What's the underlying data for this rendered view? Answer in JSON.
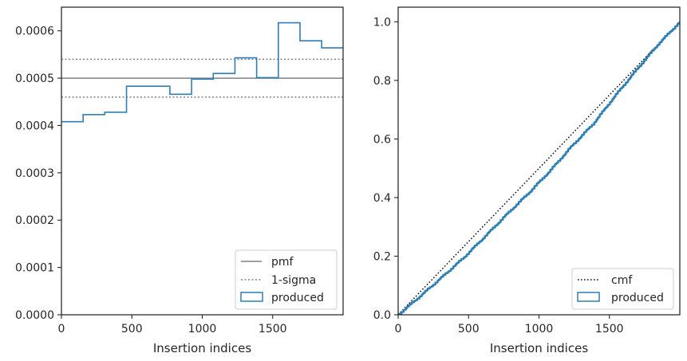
{
  "chart_data": [
    {
      "type": "step",
      "title": "",
      "xlabel": "Insertion indices",
      "ylabel": "",
      "xlim": [
        0,
        2000
      ],
      "ylim": [
        0,
        0.00065
      ],
      "xticks": [
        0,
        500,
        1000,
        1500
      ],
      "xtick_labels": [
        "0",
        "500",
        "1000",
        "1500"
      ],
      "yticks": [
        0,
        0.0001,
        0.0002,
        0.0003,
        0.0004,
        0.0005,
        0.0006
      ],
      "ytick_labels": [
        "0.0000",
        "0.0001",
        "0.0002",
        "0.0003",
        "0.0004",
        "0.0005",
        "0.0006"
      ],
      "legend": [
        "pmf",
        "1-sigma",
        "produced"
      ],
      "legend_position": "lower-right",
      "pmf": 0.0005,
      "sigma_band": [
        0.00046,
        0.00054
      ],
      "series": [
        {
          "name": "produced",
          "color": "#2f7fb5",
          "bin_edges": [
            0,
            154,
            308,
            462,
            616,
            770,
            924,
            1078,
            1232,
            1386,
            1540,
            1694,
            1848,
            2000
          ],
          "values": [
            0.000408,
            0.000423,
            0.000428,
            0.000483,
            0.000483,
            0.000466,
            0.000498,
            0.00051,
            0.000543,
            0.000501,
            0.000617,
            0.000579,
            0.000564
          ]
        }
      ],
      "colors": {
        "pmf": "#808080",
        "sigma": "#808080",
        "produced": "#2f7fb5"
      }
    },
    {
      "type": "line",
      "title": "",
      "xlabel": "Insertion indices",
      "ylabel": "",
      "xlim": [
        0,
        2000
      ],
      "ylim": [
        0,
        1.05
      ],
      "xticks": [
        0,
        500,
        1000,
        1500
      ],
      "xtick_labels": [
        "0",
        "500",
        "1000",
        "1500"
      ],
      "yticks": [
        0,
        0.2,
        0.4,
        0.6,
        0.8,
        1.0
      ],
      "ytick_labels": [
        "0.0",
        "0.2",
        "0.4",
        "0.6",
        "0.8",
        "1.0"
      ],
      "legend": [
        "cmf",
        "produced"
      ],
      "legend_position": "lower-right",
      "series": [
        {
          "name": "cmf",
          "style": "dotted",
          "color": "#000000",
          "x": [
            0,
            2000
          ],
          "y": [
            0,
            1.0
          ]
        },
        {
          "name": "produced",
          "color": "#2f7fb5",
          "x": [
            0,
            154,
            308,
            462,
            616,
            770,
            924,
            1078,
            1232,
            1386,
            1540,
            1694,
            1848,
            2000
          ],
          "y": [
            0,
            0.063,
            0.128,
            0.194,
            0.268,
            0.343,
            0.415,
            0.492,
            0.576,
            0.653,
            0.748,
            0.838,
            0.925,
            1.0
          ]
        }
      ]
    }
  ]
}
